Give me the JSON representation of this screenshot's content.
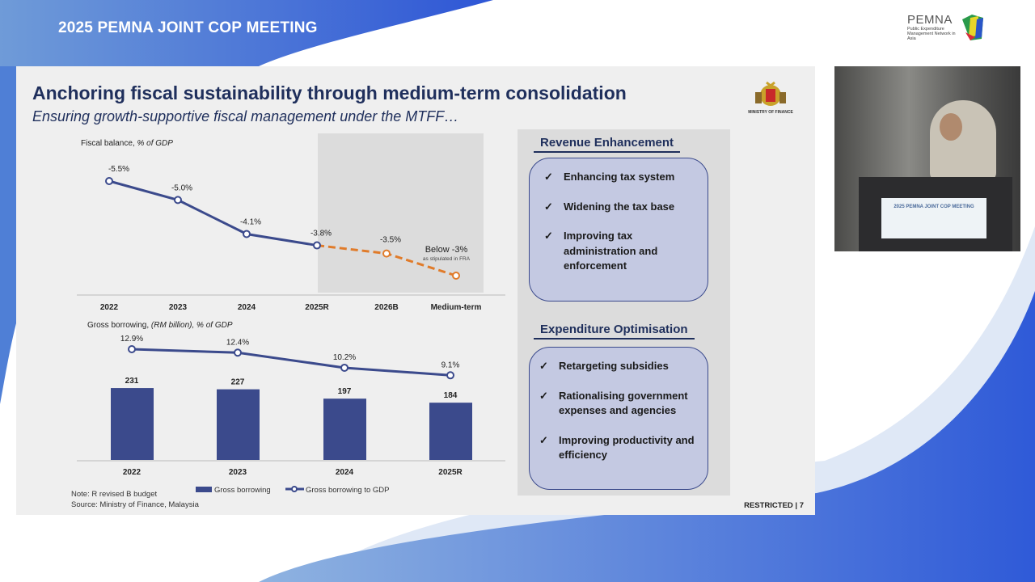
{
  "event": {
    "title_pre": "2025 PEMNA ",
    "title_bold": "JOINT COP",
    "title_post": " MEETING"
  },
  "logo": {
    "name": "PEMNA",
    "tagline": "Public Expenditure Management Network in Asia"
  },
  "slide": {
    "title": "Anchoring fiscal sustainability through medium-term consolidation",
    "subtitle": "Ensuring growth-supportive fiscal management under the MTFF…",
    "emblem_label": "MINISTRY OF FINANCE",
    "note": "Note: R revised B budget",
    "source": "Source: Ministry of Finance, Malaysia",
    "classification": "RESTRICTED | 7",
    "revenue": {
      "heading": "Revenue Enhancement",
      "items": [
        "Enhancing tax system",
        "Widening the tax base",
        "Improving tax administration and enforcement"
      ]
    },
    "expenditure": {
      "heading": "Expenditure Optimisation",
      "items": [
        "Retargeting subsidies",
        "Rationalising government expenses and agencies",
        "Improving productivity and efficiency"
      ]
    },
    "check_icon": "✓"
  },
  "video": {
    "podium_sign": "2025 PEMNA JOINT COP MEETING"
  },
  "colors": {
    "navy": "#3b4a8c",
    "orange": "#e07b2a",
    "title": "#1f2f5c"
  },
  "chart_data": [
    {
      "type": "line",
      "title": "Fiscal balance, % of GDP",
      "title_main": "Fiscal balance,",
      "title_unit": " % of GDP",
      "categories": [
        "2022",
        "2023",
        "2024",
        "2025R",
        "2026B",
        "Medium-term"
      ],
      "values": [
        -5.5,
        -5.0,
        -4.1,
        -3.8,
        -3.5,
        -3.0
      ],
      "labels": [
        "-5.5%",
        "-5.0%",
        "-4.1%",
        "-3.8%",
        "-3.5%"
      ],
      "projection_from": "2025R",
      "projection_style": "dashed orange",
      "shaded_region": [
        "2026B",
        "Medium-term"
      ],
      "annotation": {
        "label": "Below -3%",
        "sub": "as stipulated in FRA"
      }
    },
    {
      "type": "bar+line",
      "title": "Gross borrowing, (RM billion), % of GDP",
      "title_main": "Gross borrowing,",
      "title_unit": " (RM billion), % of GDP",
      "categories": [
        "2022",
        "2023",
        "2024",
        "2025R"
      ],
      "series": [
        {
          "name": "Gross borrowing",
          "type": "bar",
          "values": [
            231,
            227,
            197,
            184
          ],
          "labels": [
            "231",
            "227",
            "197",
            "184"
          ]
        },
        {
          "name": "Gross borrowing to GDP",
          "type": "line",
          "values": [
            12.9,
            12.4,
            10.2,
            9.1
          ],
          "labels": [
            "12.9%",
            "12.4%",
            "10.2%",
            "9.1%"
          ]
        }
      ],
      "legend": "bottom"
    }
  ]
}
